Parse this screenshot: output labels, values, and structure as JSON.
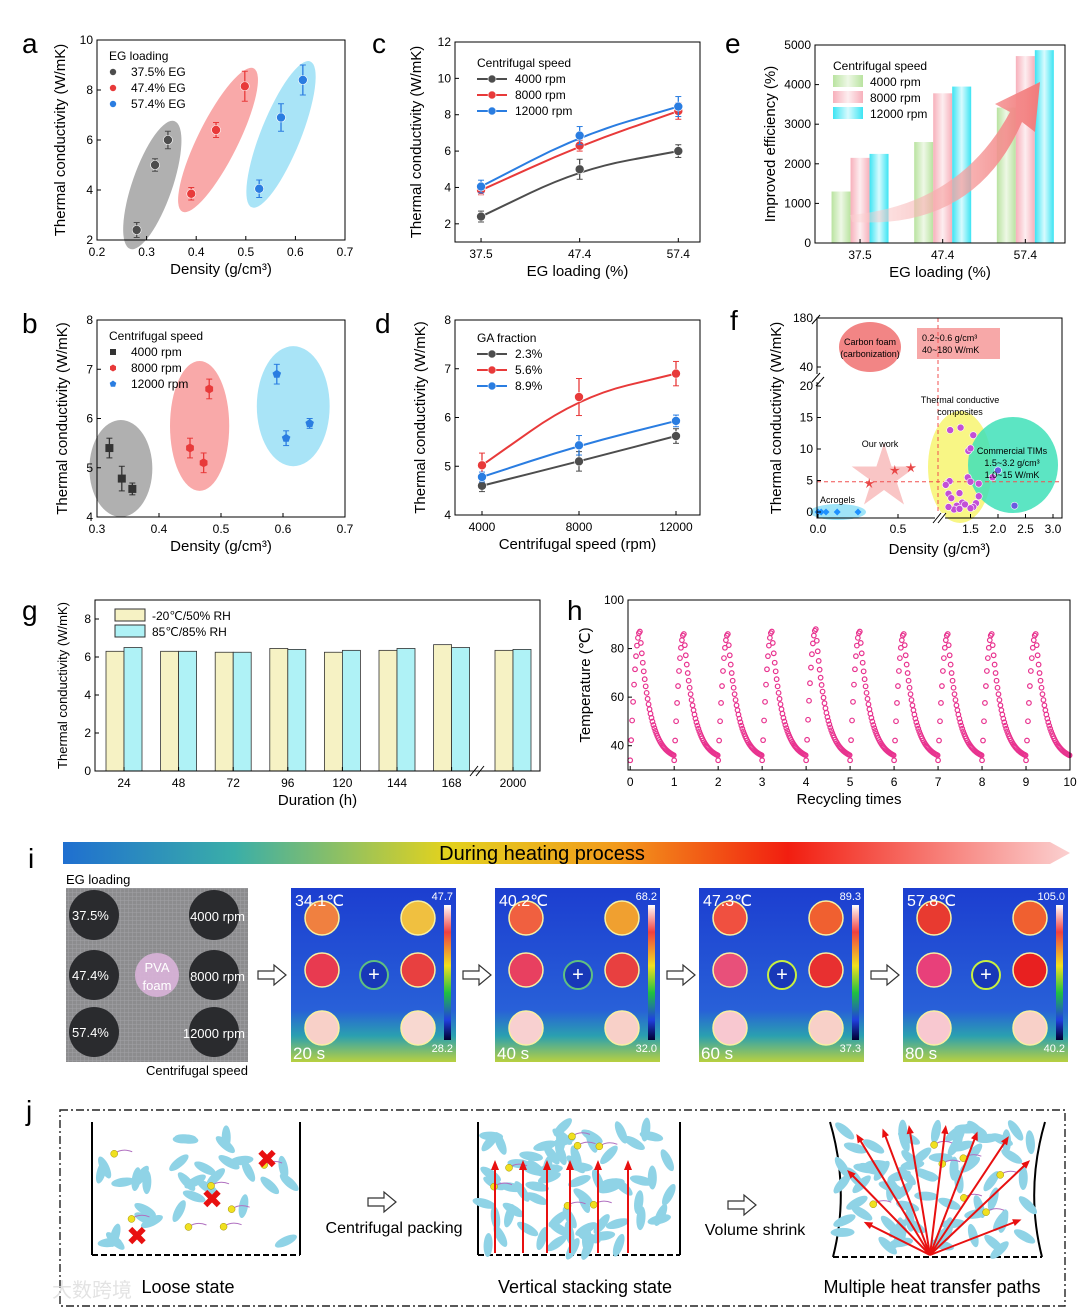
{
  "watermark": "大数跨境",
  "chart_data": [
    {
      "panel": "a",
      "type": "scatter",
      "xlabel": "Density (g/cm³)",
      "ylabel": "Thermal conductivity (W/mK)",
      "xlim": [
        0.2,
        0.7
      ],
      "ylim": [
        2,
        10
      ],
      "xticks": [
        "0.2",
        "0.3",
        "0.4",
        "0.5",
        "0.6",
        "0.7"
      ],
      "yticks": [
        "2",
        "4",
        "6",
        "8",
        "10"
      ],
      "legend_title": "EG loading",
      "legend": "top-left",
      "series": [
        {
          "name": "37.5% EG",
          "color": "#4d4d4d",
          "ellipse_color": "#b0b0b0",
          "marker": "circle",
          "x": [
            0.28,
            0.317,
            0.343
          ],
          "y": [
            2.4,
            5.0,
            6.0
          ],
          "err": [
            0.3,
            0.25,
            0.35
          ]
        },
        {
          "name": "47.4% EG",
          "color": "#e83a3a",
          "ellipse_color": "#f9a9a9",
          "marker": "circle",
          "x": [
            0.39,
            0.44,
            0.498
          ],
          "y": [
            3.85,
            6.4,
            8.15
          ],
          "err": [
            0.25,
            0.3,
            0.6
          ]
        },
        {
          "name": "57.4% EG",
          "color": "#2a7de1",
          "ellipse_color": "#a9e4f7",
          "marker": "circle",
          "x": [
            0.527,
            0.571,
            0.615
          ],
          "y": [
            4.05,
            6.9,
            8.4
          ],
          "err": [
            0.35,
            0.55,
            0.6
          ]
        }
      ]
    },
    {
      "panel": "c",
      "type": "line",
      "xlabel": "EG loading (%)",
      "ylabel": "Thermal conductivity (W/mK)",
      "categories": [
        "37.5",
        "47.4",
        "57.4"
      ],
      "ylim": [
        1,
        12
      ],
      "yticks": [
        "2",
        "4",
        "6",
        "8",
        "10",
        "12"
      ],
      "legend_title": "Centrifugal speed",
      "legend": "top-left",
      "series": [
        {
          "name": "4000 rpm",
          "color": "#4d4d4d",
          "y": [
            2.4,
            5.0,
            6.0
          ],
          "err": [
            0.3,
            0.55,
            0.35
          ]
        },
        {
          "name": "8000 rpm",
          "color": "#e83a3a",
          "y": [
            3.85,
            6.3,
            8.2
          ],
          "err": [
            0.25,
            0.3,
            0.45
          ]
        },
        {
          "name": "12000 rpm",
          "color": "#2a7de1",
          "y": [
            4.05,
            6.85,
            8.45
          ],
          "err": [
            0.35,
            0.5,
            0.55
          ]
        }
      ]
    },
    {
      "panel": "e",
      "type": "bar",
      "xlabel": "EG loading (%)",
      "ylabel": "Improved efficiency (%)",
      "categories": [
        "37.5",
        "47.4",
        "57.4"
      ],
      "ylim": [
        0,
        5000
      ],
      "yticks": [
        "0",
        "1000",
        "2000",
        "3000",
        "4000",
        "5000"
      ],
      "legend_title": "Centrifugal speed",
      "legend": "top-left",
      "series": [
        {
          "name": "4000 rpm",
          "color": "#b9e3a0",
          "values": [
            1300,
            2550,
            3420
          ]
        },
        {
          "name": "8000 rpm",
          "color": "#f7b9c2",
          "values": [
            2150,
            3780,
            4720
          ]
        },
        {
          "name": "12000 rpm",
          "color": "#5fe8f5",
          "values": [
            2250,
            3950,
            4870
          ]
        }
      ]
    },
    {
      "panel": "b",
      "type": "scatter",
      "xlabel": "Density (g/cm³)",
      "ylabel": "Thermal conductivity (W/mK)",
      "xlim": [
        0.3,
        0.7
      ],
      "ylim": [
        4,
        8
      ],
      "xticks": [
        "0.3",
        "0.4",
        "0.5",
        "0.6",
        "0.7"
      ],
      "yticks": [
        "4",
        "5",
        "6",
        "7",
        "8"
      ],
      "legend_title": "Centrifugal speed",
      "legend": "top-left",
      "series": [
        {
          "name": "4000 rpm",
          "color": "#333333",
          "ellipse_color": "#b0b0b0",
          "marker": "square",
          "x": [
            0.32,
            0.34,
            0.357
          ],
          "y": [
            5.4,
            4.78,
            4.57
          ],
          "err": [
            0.2,
            0.25,
            0.12
          ]
        },
        {
          "name": "8000 rpm",
          "color": "#e83a3a",
          "ellipse_color": "#f9a9a9",
          "marker": "hexagon",
          "x": [
            0.45,
            0.472,
            0.481
          ],
          "y": [
            5.4,
            5.1,
            6.6
          ],
          "err": [
            0.2,
            0.2,
            0.2
          ]
        },
        {
          "name": "12000 rpm",
          "color": "#2a7de1",
          "ellipse_color": "#a9e4f7",
          "marker": "pentagon",
          "x": [
            0.59,
            0.605,
            0.643
          ],
          "y": [
            6.9,
            5.6,
            5.9
          ],
          "err": [
            0.2,
            0.15,
            0.1
          ]
        }
      ]
    },
    {
      "panel": "d",
      "type": "line",
      "xlabel": "Centrifugal speed (rpm)",
      "ylabel": "Thermal conductivity (W/mK)",
      "x": [
        4000,
        8000,
        12000
      ],
      "xticks": [
        "4000",
        "8000",
        "12000"
      ],
      "ylim": [
        4,
        8
      ],
      "yticks": [
        "4",
        "5",
        "6",
        "7",
        "8"
      ],
      "legend_title": "GA fraction",
      "legend": "top-left",
      "series": [
        {
          "name": "2.3%",
          "color": "#4d4d4d",
          "y": [
            4.6,
            5.1,
            5.62
          ],
          "err": [
            0.12,
            0.2,
            0.15
          ]
        },
        {
          "name": "5.6%",
          "color": "#e83a3a",
          "y": [
            5.02,
            6.42,
            6.9
          ],
          "err": [
            0.25,
            0.38,
            0.25
          ]
        },
        {
          "name": "8.9%",
          "color": "#2a7de1",
          "y": [
            4.78,
            5.43,
            5.93
          ],
          "err": [
            0.1,
            0.2,
            0.12
          ]
        }
      ]
    },
    {
      "panel": "f",
      "type": "scatter",
      "xlabel": "Density (g/cm³)",
      "ylabel": "Thermal conductivity (W/mK)",
      "xticks": [
        "0.0",
        "0.5",
        "1.5",
        "2.0",
        "2.5",
        "3.0"
      ],
      "yticks_lower": [
        "0",
        "5",
        "10",
        "15",
        "20"
      ],
      "yticks_upper": [
        "40",
        "180"
      ],
      "reference_lines": {
        "density": 0.75,
        "conductivity": 4.8
      },
      "annotations": {
        "carbon_foam": [
          "Carbon foam",
          "(carbonization)"
        ],
        "box": [
          "0.2~0.6 g/cm³",
          "40~180 W/mK"
        ],
        "composites": [
          "Thermal conductive",
          "composites"
        ],
        "our_work": "Our work",
        "aerogels": "Acrogels",
        "tims": [
          "Commercial TIMs",
          "1.5~3.2 g/cm³",
          "1.0~15 W/mK"
        ]
      },
      "groups": [
        {
          "name": "Aerogels",
          "color": "#1e90ff",
          "marker": "diamond",
          "x": [
            0.0,
            0.02,
            0.05,
            0.12,
            0.25
          ],
          "y": [
            0,
            0,
            0,
            0,
            0
          ]
        },
        {
          "name": "Our work",
          "color": "#e84545",
          "marker": "star",
          "x": [
            0.32,
            0.48,
            0.58
          ],
          "y": [
            4.5,
            6.6,
            7.0
          ]
        },
        {
          "name": "Thermal conductive composites",
          "color": "#c34fd6",
          "marker": "circle",
          "x": [
            1.13,
            1.32,
            1.55,
            1.46,
            1.5,
            1.45,
            1.5,
            1.1,
            1.12,
            1.1,
            1.15,
            1.3,
            1.35,
            1.25,
            1.4,
            1.6,
            1.55,
            1.5,
            1.2,
            1.3,
            1.05,
            1.1,
            1.65,
            1.9,
            1.65
          ],
          "y": [
            13,
            13.4,
            12.2,
            9.7,
            10.1,
            5.5,
            4.8,
            4.8,
            4.9,
            2.9,
            2.2,
            3,
            1.5,
            1,
            1.2,
            1.4,
            0.8,
            0.6,
            0.4,
            0.5,
            4.3,
            0.8,
            4.5,
            5.5,
            2.5
          ]
        },
        {
          "name": "Commercial TIMs",
          "color": "#6a5be0",
          "marker": "circle",
          "x": [
            2.0,
            2.3
          ],
          "y": [
            6.6,
            1.0
          ]
        }
      ]
    },
    {
      "panel": "g",
      "type": "bar",
      "xlabel": "Duration (h)",
      "ylabel": "Thermal conductivity (W/mK)",
      "categories": [
        "24",
        "48",
        "72",
        "96",
        "120",
        "144",
        "168",
        "2000"
      ],
      "ylim": [
        0,
        9
      ],
      "yticks": [
        "0",
        "2",
        "4",
        "6",
        "8"
      ],
      "legend": "top-left",
      "series": [
        {
          "name": "-20℃/50% RH",
          "color": "#f6f2c4",
          "values": [
            6.3,
            6.3,
            6.25,
            6.45,
            6.25,
            6.35,
            6.65,
            6.35
          ]
        },
        {
          "name": "85℃/85% RH",
          "color": "#aff2f6",
          "values": [
            6.5,
            6.3,
            6.25,
            6.4,
            6.35,
            6.45,
            6.5,
            6.4
          ]
        }
      ]
    },
    {
      "panel": "h",
      "type": "line",
      "xlabel": "Recycling times",
      "ylabel": "Temperature (℃)",
      "xlim": [
        0,
        10
      ],
      "ylim": [
        30,
        100
      ],
      "xticks": [
        "0",
        "1",
        "2",
        "3",
        "4",
        "5",
        "6",
        "7",
        "8",
        "9",
        "10"
      ],
      "yticks": [
        "40",
        "60",
        "80",
        "100"
      ],
      "color": "#e8338f",
      "cycle_peaks": [
        87,
        86,
        86,
        87,
        88,
        87,
        86,
        86,
        86,
        86
      ],
      "cycle_min": 34
    }
  ],
  "panel_i": {
    "letter": "i",
    "banner": "During heating process",
    "photo": {
      "top_label": "EG loading",
      "bottom_label": "Centrifugal speed",
      "rows": [
        "37.5%",
        "47.4%",
        "57.4%"
      ],
      "speeds": [
        "4000 rpm",
        "8000 rpm",
        "12000 rpm"
      ],
      "center": [
        "PVA",
        "foam"
      ]
    },
    "frames": [
      {
        "temp": "34.1℃",
        "max": "47.7",
        "min": "28.2",
        "time": "20 s"
      },
      {
        "temp": "40.2℃",
        "max": "68.2",
        "min": "32.0",
        "time": "40 s"
      },
      {
        "temp": "47.3℃",
        "max": "89.3",
        "min": "37.3",
        "time": "60 s"
      },
      {
        "temp": "57.8℃",
        "max": "105.0",
        "min": "40.2",
        "time": "80 s"
      }
    ]
  },
  "panel_j": {
    "letter": "j",
    "states": [
      "Loose state",
      "Vertical stacking state",
      "Multiple heat transfer paths"
    ],
    "steps": [
      "Centrifugal packing",
      "Volume shrink"
    ]
  }
}
